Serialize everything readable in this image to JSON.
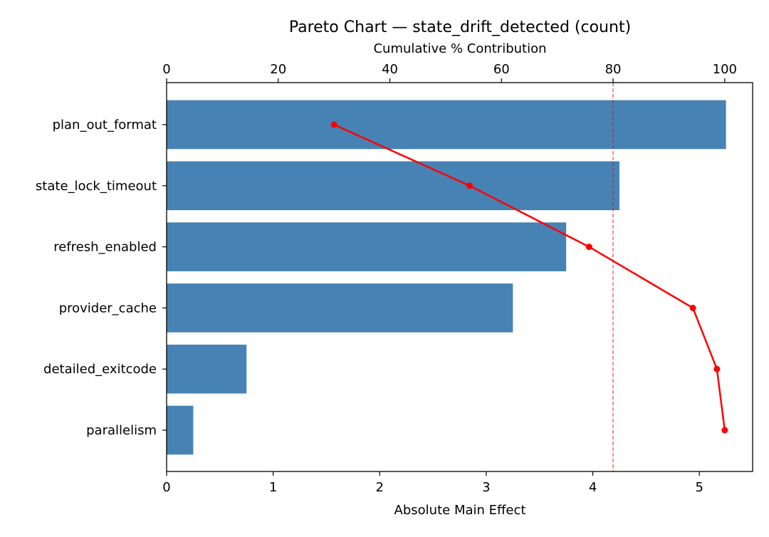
{
  "chart_data": {
    "type": "bar",
    "orientation": "horizontal",
    "title": "Pareto Chart — state_drift_detected (count)",
    "xlabel": "Absolute Main Effect",
    "x2label": "Cumulative % Contribution",
    "categories": [
      "plan_out_format",
      "state_lock_timeout",
      "refresh_enabled",
      "provider_cache",
      "detailed_exitcode",
      "parallelism"
    ],
    "values": [
      5.25,
      4.25,
      3.75,
      3.25,
      0.75,
      0.25
    ],
    "cumulative_percent": [
      30.0,
      54.3,
      75.7,
      94.3,
      98.6,
      100.0
    ],
    "threshold_percent": 80,
    "xlim": [
      0,
      5.5
    ],
    "x2lim": [
      0,
      105
    ],
    "xticks": [
      "0",
      "1",
      "2",
      "3",
      "4",
      "5"
    ],
    "x2ticks": [
      "0",
      "20",
      "40",
      "60",
      "80",
      "100"
    ],
    "grid": false,
    "colors": {
      "bars": "#4682b4",
      "cumulative_line": "#ff0000",
      "threshold": "#ff0000"
    }
  }
}
